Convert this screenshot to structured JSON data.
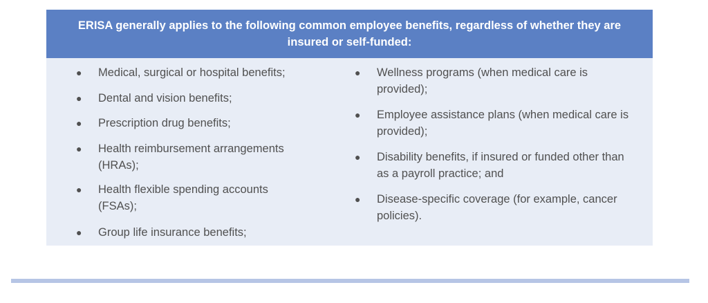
{
  "header": {
    "text": "ERISA generally applies to the following common employee benefits, regardless of whether they are insured or self-funded:"
  },
  "left_items": [
    "Medical, surgical or hospital benefits;",
    "Dental and vision benefits;",
    "Prescription drug benefits;",
    "Health reimbursement arrangements (HRAs);",
    "Health flexible spending accounts (FSAs);",
    "Group life insurance benefits;"
  ],
  "right_items": [
    "Wellness programs (when medical care is provided);",
    "Employee assistance plans (when medical care is provided);",
    "Disability benefits, if insured or funded other than as a payroll practice; and",
    "Disease-specific coverage (for example, cancer policies)."
  ],
  "colors": {
    "header_bg": "#5b80c4",
    "body_bg": "#e8edf6",
    "rule": "#b6c5e5"
  }
}
